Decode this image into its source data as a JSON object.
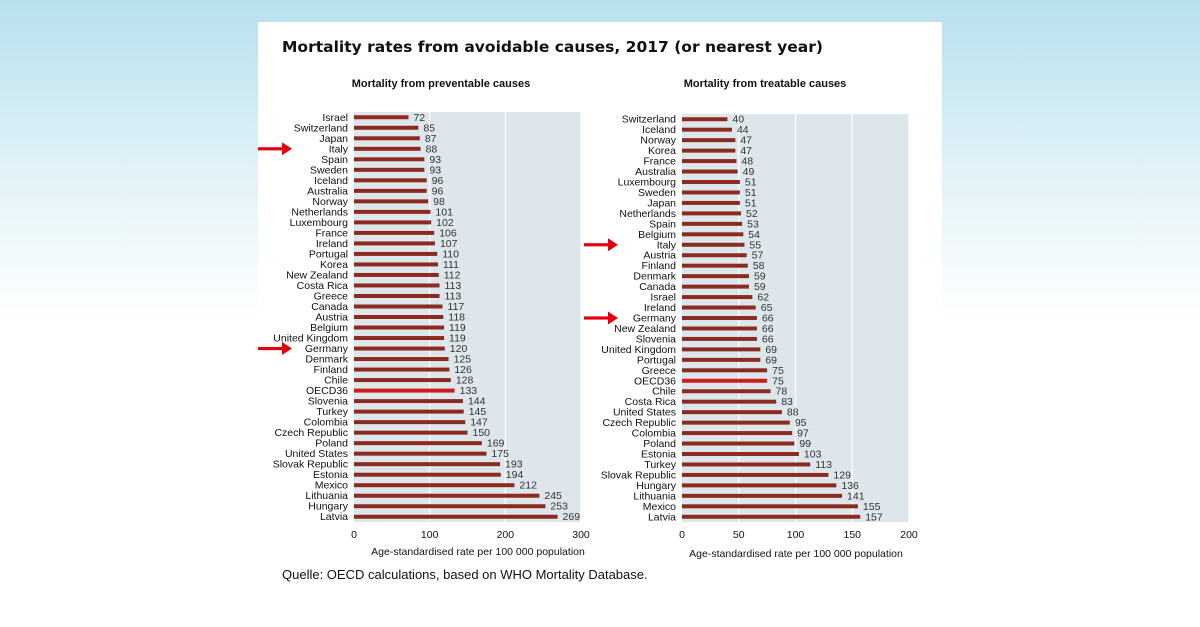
{
  "title": "Mortality rates from avoidable causes, 2017 (or nearest year)",
  "source": "Quelle: OECD calculations, based on WHO Mortality Database.",
  "colors": {
    "bar": "#8c2a1f",
    "bar_highlight": "#d11a1a",
    "plot_bg": "#dce6eb",
    "arrow": "#e3000f"
  },
  "chart_data": [
    {
      "type": "bar",
      "orientation": "horizontal",
      "title": "Mortality from preventable causes",
      "xlabel": "Age-standardised rate per 100 000 population",
      "xlim": [
        0,
        300
      ],
      "xticks": [
        0,
        100,
        200,
        300
      ],
      "highlight": [
        "OECD36"
      ],
      "arrows": [
        "Italy",
        "Germany"
      ],
      "categories": [
        "Israel",
        "Switzerland",
        "Japan",
        "Italy",
        "Spain",
        "Sweden",
        "Iceland",
        "Australia",
        "Norway",
        "Netherlands",
        "Luxembourg",
        "France",
        "Ireland",
        "Portugal",
        "Korea",
        "New Zealand",
        "Costa Rica",
        "Greece",
        "Canada",
        "Austria",
        "Belgium",
        "United Kingdom",
        "Germany",
        "Denmark",
        "Finland",
        "Chile",
        "OECD36",
        "Slovenia",
        "Turkey",
        "Colombia",
        "Czech Republic",
        "Poland",
        "United States",
        "Slovak Republic",
        "Estonia",
        "Mexico",
        "Lithuania",
        "Hungary",
        "Latvia"
      ],
      "values": [
        72,
        85,
        87,
        88,
        93,
        93,
        96,
        96,
        98,
        101,
        102,
        106,
        107,
        110,
        111,
        112,
        113,
        113,
        117,
        118,
        119,
        119,
        120,
        125,
        126,
        128,
        133,
        144,
        145,
        147,
        150,
        169,
        175,
        193,
        194,
        212,
        245,
        253,
        269
      ]
    },
    {
      "type": "bar",
      "orientation": "horizontal",
      "title": "Mortality from treatable causes",
      "xlabel": "Age-standardised rate per 100 000 population",
      "xlim": [
        0,
        200
      ],
      "xticks": [
        0,
        50,
        100,
        150,
        200
      ],
      "highlight": [
        "OECD36"
      ],
      "arrows": [
        "Italy",
        "Germany"
      ],
      "categories": [
        "Switzerland",
        "Iceland",
        "Norway",
        "Korea",
        "France",
        "Australia",
        "Luxembourg",
        "Sweden",
        "Japan",
        "Netherlands",
        "Spain",
        "Belgium",
        "Italy",
        "Austria",
        "Finland",
        "Denmark",
        "Canada",
        "Israel",
        "Ireland",
        "Germany",
        "New Zealand",
        "Slovenia",
        "United Kingdom",
        "Portugal",
        "Greece",
        "OECD36",
        "Chile",
        "Costa Rica",
        "United States",
        "Czech Republic",
        "Colombia",
        "Poland",
        "Estonia",
        "Turkey",
        "Slovak Republic",
        "Hungary",
        "Lithuania",
        "Mexico",
        "Latvia"
      ],
      "values": [
        40,
        44,
        47,
        47,
        48,
        49,
        51,
        51,
        51,
        52,
        53,
        54,
        55,
        57,
        58,
        59,
        59,
        62,
        65,
        66,
        66,
        66,
        69,
        69,
        75,
        75,
        78,
        83,
        88,
        95,
        97,
        99,
        103,
        113,
        129,
        136,
        141,
        155,
        157
      ]
    }
  ]
}
